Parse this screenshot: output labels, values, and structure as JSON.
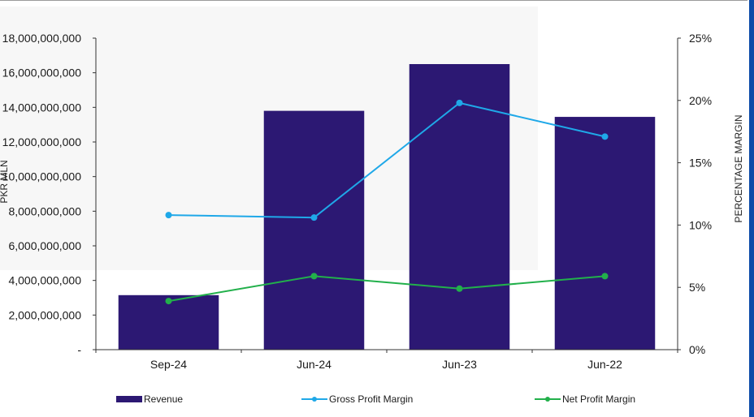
{
  "chart_data": {
    "type": "bar",
    "categories": [
      "Sep-24",
      "Jun-24",
      "Jun-23",
      "Jun-22"
    ],
    "series": [
      {
        "name": "Revenue",
        "type": "bar",
        "axis": "left",
        "color": "#2c1873",
        "values": [
          3150000000,
          13800000000,
          16500000000,
          13450000000
        ]
      },
      {
        "name": "Gross Profit Margin",
        "type": "line",
        "axis": "right",
        "color": "#1fa8e8",
        "values": [
          10.8,
          10.6,
          19.8,
          17.1
        ]
      },
      {
        "name": "Net Profit Margin",
        "type": "line",
        "axis": "right",
        "color": "#22b04b",
        "values": [
          3.9,
          5.9,
          4.9,
          5.9
        ]
      }
    ],
    "ylabel": "PKR MLN",
    "y2label": "PERCENTAGE MARGIN",
    "ylim": [
      0,
      18000000000
    ],
    "y2lim": [
      0,
      25
    ],
    "yticks": [
      "-",
      "2,000,000,000",
      "4,000,000,000",
      "6,000,000,000",
      "8,000,000,000",
      "10,000,000,000",
      "12,000,000,000",
      "14,000,000,000",
      "16,000,000,000",
      "18,000,000,000"
    ],
    "y2ticks": [
      "0%",
      "5%",
      "10%",
      "15%",
      "20%",
      "25%"
    ],
    "grid": false,
    "legend": "bottom"
  }
}
